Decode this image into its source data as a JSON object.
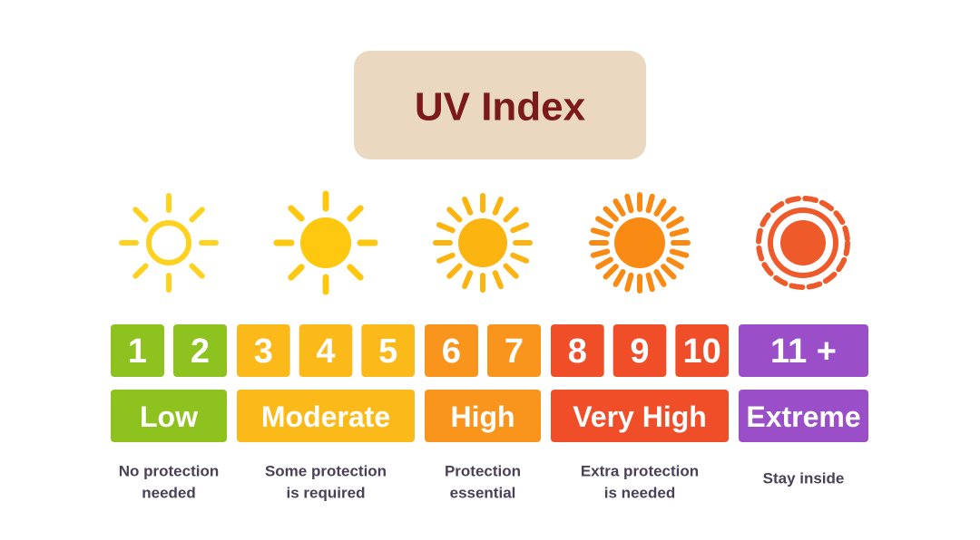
{
  "title": "UV Index",
  "levels": [
    {
      "numbers": [
        1,
        2
      ],
      "label": "Low",
      "advice": [
        "No protection",
        "needed"
      ]
    },
    {
      "numbers": [
        3,
        4,
        5
      ],
      "label": "Moderate",
      "advice": [
        "Some protection",
        "is required"
      ]
    },
    {
      "numbers": [
        6,
        7
      ],
      "label": "High",
      "advice": [
        "Protection",
        "essential"
      ]
    },
    {
      "numbers": [
        8,
        9,
        10
      ],
      "label": "Very High",
      "advice": [
        "Extra protection",
        "is needed"
      ]
    },
    {
      "numbers": [
        "11 +"
      ],
      "label": "Extreme",
      "advice": [
        "Stay inside"
      ]
    }
  ]
}
